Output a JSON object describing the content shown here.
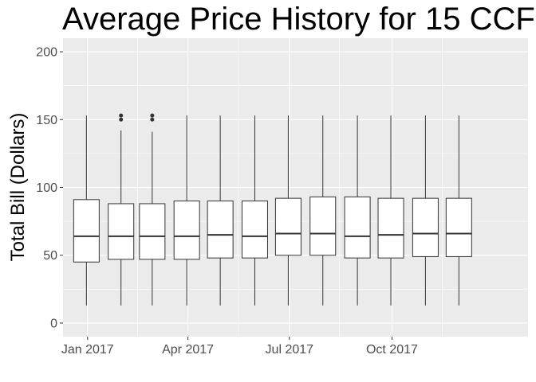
{
  "chart_data": {
    "type": "box",
    "title": "Average Price History for 15 CCF",
    "xlabel": "",
    "ylabel": "Total Bill (Dollars)",
    "ylim": [
      -10,
      210
    ],
    "y_ticks": [
      0,
      50,
      100,
      150,
      200
    ],
    "x_tick_labels": [
      "Jan 2017",
      "Apr 2017",
      "Jul 2017",
      "Oct 2017"
    ],
    "x_tick_dates": [
      "2017-01-01",
      "2017-04-01",
      "2017-07-01",
      "2017-10-01"
    ],
    "xlim": [
      "2016-12-10",
      "2018-01-31"
    ],
    "grid": true,
    "background": "#ebebeb",
    "box_fill": "#ffffff",
    "line_color": "#333333",
    "boxes": [
      {
        "date": "2016-12-31",
        "whisker_low": 13,
        "q1": 45,
        "median": 64,
        "q3": 91,
        "whisker_high": 153,
        "outliers": []
      },
      {
        "date": "2017-01-31",
        "whisker_low": 13,
        "q1": 47,
        "median": 64,
        "q3": 88,
        "whisker_high": 142,
        "outliers": [
          150,
          153
        ]
      },
      {
        "date": "2017-02-28",
        "whisker_low": 13,
        "q1": 47,
        "median": 64,
        "q3": 88,
        "whisker_high": 141,
        "outliers": [
          150,
          153
        ]
      },
      {
        "date": "2017-03-31",
        "whisker_low": 13,
        "q1": 47,
        "median": 64,
        "q3": 90,
        "whisker_high": 153,
        "outliers": []
      },
      {
        "date": "2017-04-30",
        "whisker_low": 13,
        "q1": 48,
        "median": 65,
        "q3": 90,
        "whisker_high": 153,
        "outliers": []
      },
      {
        "date": "2017-05-31",
        "whisker_low": 13,
        "q1": 48,
        "median": 64,
        "q3": 90,
        "whisker_high": 153,
        "outliers": []
      },
      {
        "date": "2017-06-30",
        "whisker_low": 13,
        "q1": 50,
        "median": 66,
        "q3": 92,
        "whisker_high": 153,
        "outliers": []
      },
      {
        "date": "2017-07-31",
        "whisker_low": 13,
        "q1": 50,
        "median": 66,
        "q3": 93,
        "whisker_high": 153,
        "outliers": []
      },
      {
        "date": "2017-08-31",
        "whisker_low": 13,
        "q1": 48,
        "median": 64,
        "q3": 93,
        "whisker_high": 153,
        "outliers": []
      },
      {
        "date": "2017-09-30",
        "whisker_low": 13,
        "q1": 48,
        "median": 65,
        "q3": 92,
        "whisker_high": 153,
        "outliers": []
      },
      {
        "date": "2017-10-31",
        "whisker_low": 13,
        "q1": 49,
        "median": 66,
        "q3": 92,
        "whisker_high": 153,
        "outliers": []
      },
      {
        "date": "2017-11-30",
        "whisker_low": 13,
        "q1": 49,
        "median": 66,
        "q3": 92,
        "whisker_high": 153,
        "outliers": []
      }
    ]
  }
}
